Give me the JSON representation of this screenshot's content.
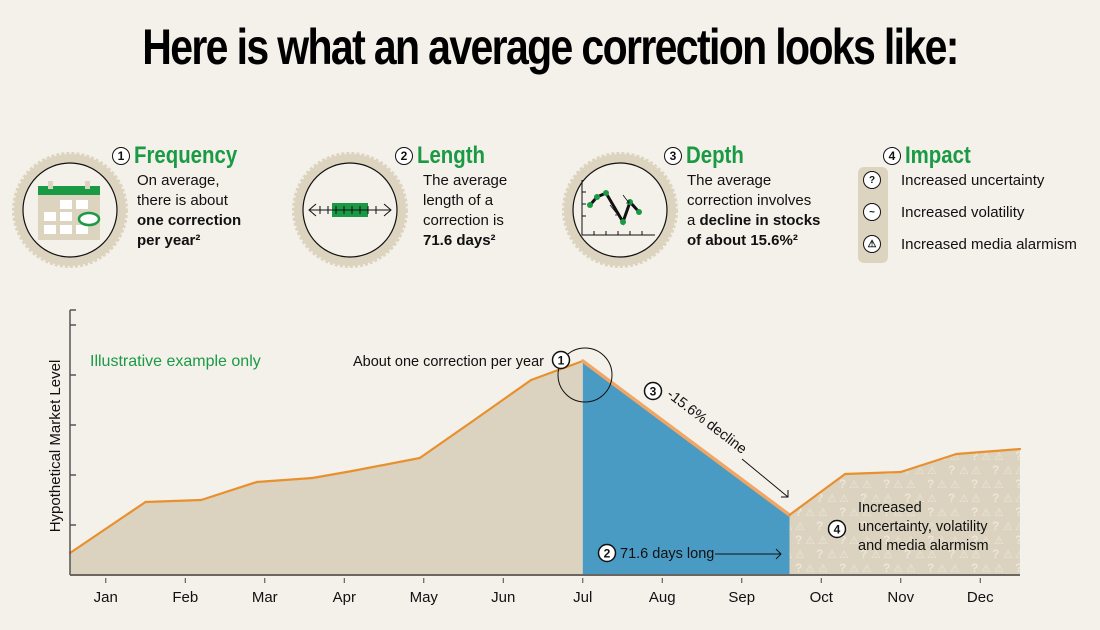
{
  "title": "Here is what an average correction looks like:",
  "cards": [
    {
      "number": "1",
      "title": "Frequency",
      "icon": "calendar-icon",
      "lines": [
        "On average,",
        "there is about"
      ],
      "bold_lines": [
        "one correction",
        "per year²"
      ]
    },
    {
      "number": "2",
      "title": "Length",
      "icon": "timeline-ruler-icon",
      "lines": [
        "The average",
        "length of a",
        "correction is"
      ],
      "bold_lines": [
        "71.6 days²"
      ]
    },
    {
      "number": "3",
      "title": "Depth",
      "icon": "line-chart-decline-icon",
      "lines": [
        "The average",
        "correction involves"
      ],
      "mixed_line": {
        "plain": "a ",
        "bold": "decline in stocks"
      },
      "bold_lines": [
        "of about 15.6%²"
      ]
    },
    {
      "number": "4",
      "title": "Impact",
      "items": [
        {
          "icon": "question-icon",
          "glyph": "?",
          "label": "Increased uncertainty"
        },
        {
          "icon": "volatility-icon",
          "glyph": "~",
          "label": "Increased volatility"
        },
        {
          "icon": "warning-icon",
          "glyph": "⚠",
          "label": "Increased media alarmism"
        }
      ]
    }
  ],
  "colors": {
    "accent_green": "#1a9a44",
    "line_orange": "#e8902e",
    "fill_tan": "#dbd3bf",
    "decline_blue": "#4a9bc4",
    "background": "#f4f0ea"
  },
  "chart_data": {
    "type": "area",
    "title": "",
    "xlabel": "",
    "ylabel": "Hypothetical Market Level",
    "x_tick_labels": [
      "Jan",
      "Feb",
      "Mar",
      "Apr",
      "May",
      "Jun",
      "Jul",
      "Aug",
      "Sep",
      "Oct",
      "Nov",
      "Dec"
    ],
    "x_range": [
      0.55,
      12.5
    ],
    "ylim": [
      0,
      5.3
    ],
    "y_ticks": [
      1,
      2,
      3,
      4,
      5
    ],
    "y_tick_labels_shown": false,
    "grid": false,
    "series": [
      {
        "name": "Hypothetical Market Level",
        "x": [
          0.55,
          1.5,
          2.2,
          2.9,
          3.6,
          4.1,
          4.95,
          5.6,
          6.35,
          7.0,
          9.6,
          10.3,
          11.0,
          11.7,
          12.5
        ],
        "values": [
          0.44,
          1.46,
          1.5,
          1.86,
          1.94,
          2.08,
          2.34,
          3.06,
          3.9,
          4.28,
          1.2,
          2.02,
          2.06,
          2.42,
          2.52
        ]
      }
    ],
    "regions": [
      {
        "name": "pre-correction",
        "from_x": 0.55,
        "to_x": 7.0,
        "color": "#dbd3bf"
      },
      {
        "name": "correction",
        "from_x": 7.0,
        "to_x": 9.6,
        "color": "#4a9bc4"
      },
      {
        "name": "aftermath",
        "from_x": 9.6,
        "to_x": 12.5,
        "color": "#dbd3bf",
        "pattern": "question-and-warning-glyphs"
      }
    ],
    "annotations": {
      "illustrative": "Illustrative example only",
      "peak": {
        "number": "1",
        "text": "About one correction per year"
      },
      "length": {
        "number": "2",
        "text": "71.6 days long"
      },
      "decline": {
        "number": "3",
        "text": "-15.6% decline"
      },
      "impact": {
        "number": "4",
        "lines": [
          "Increased",
          "uncertainty, volatility",
          "and media alarmism"
        ]
      }
    }
  }
}
